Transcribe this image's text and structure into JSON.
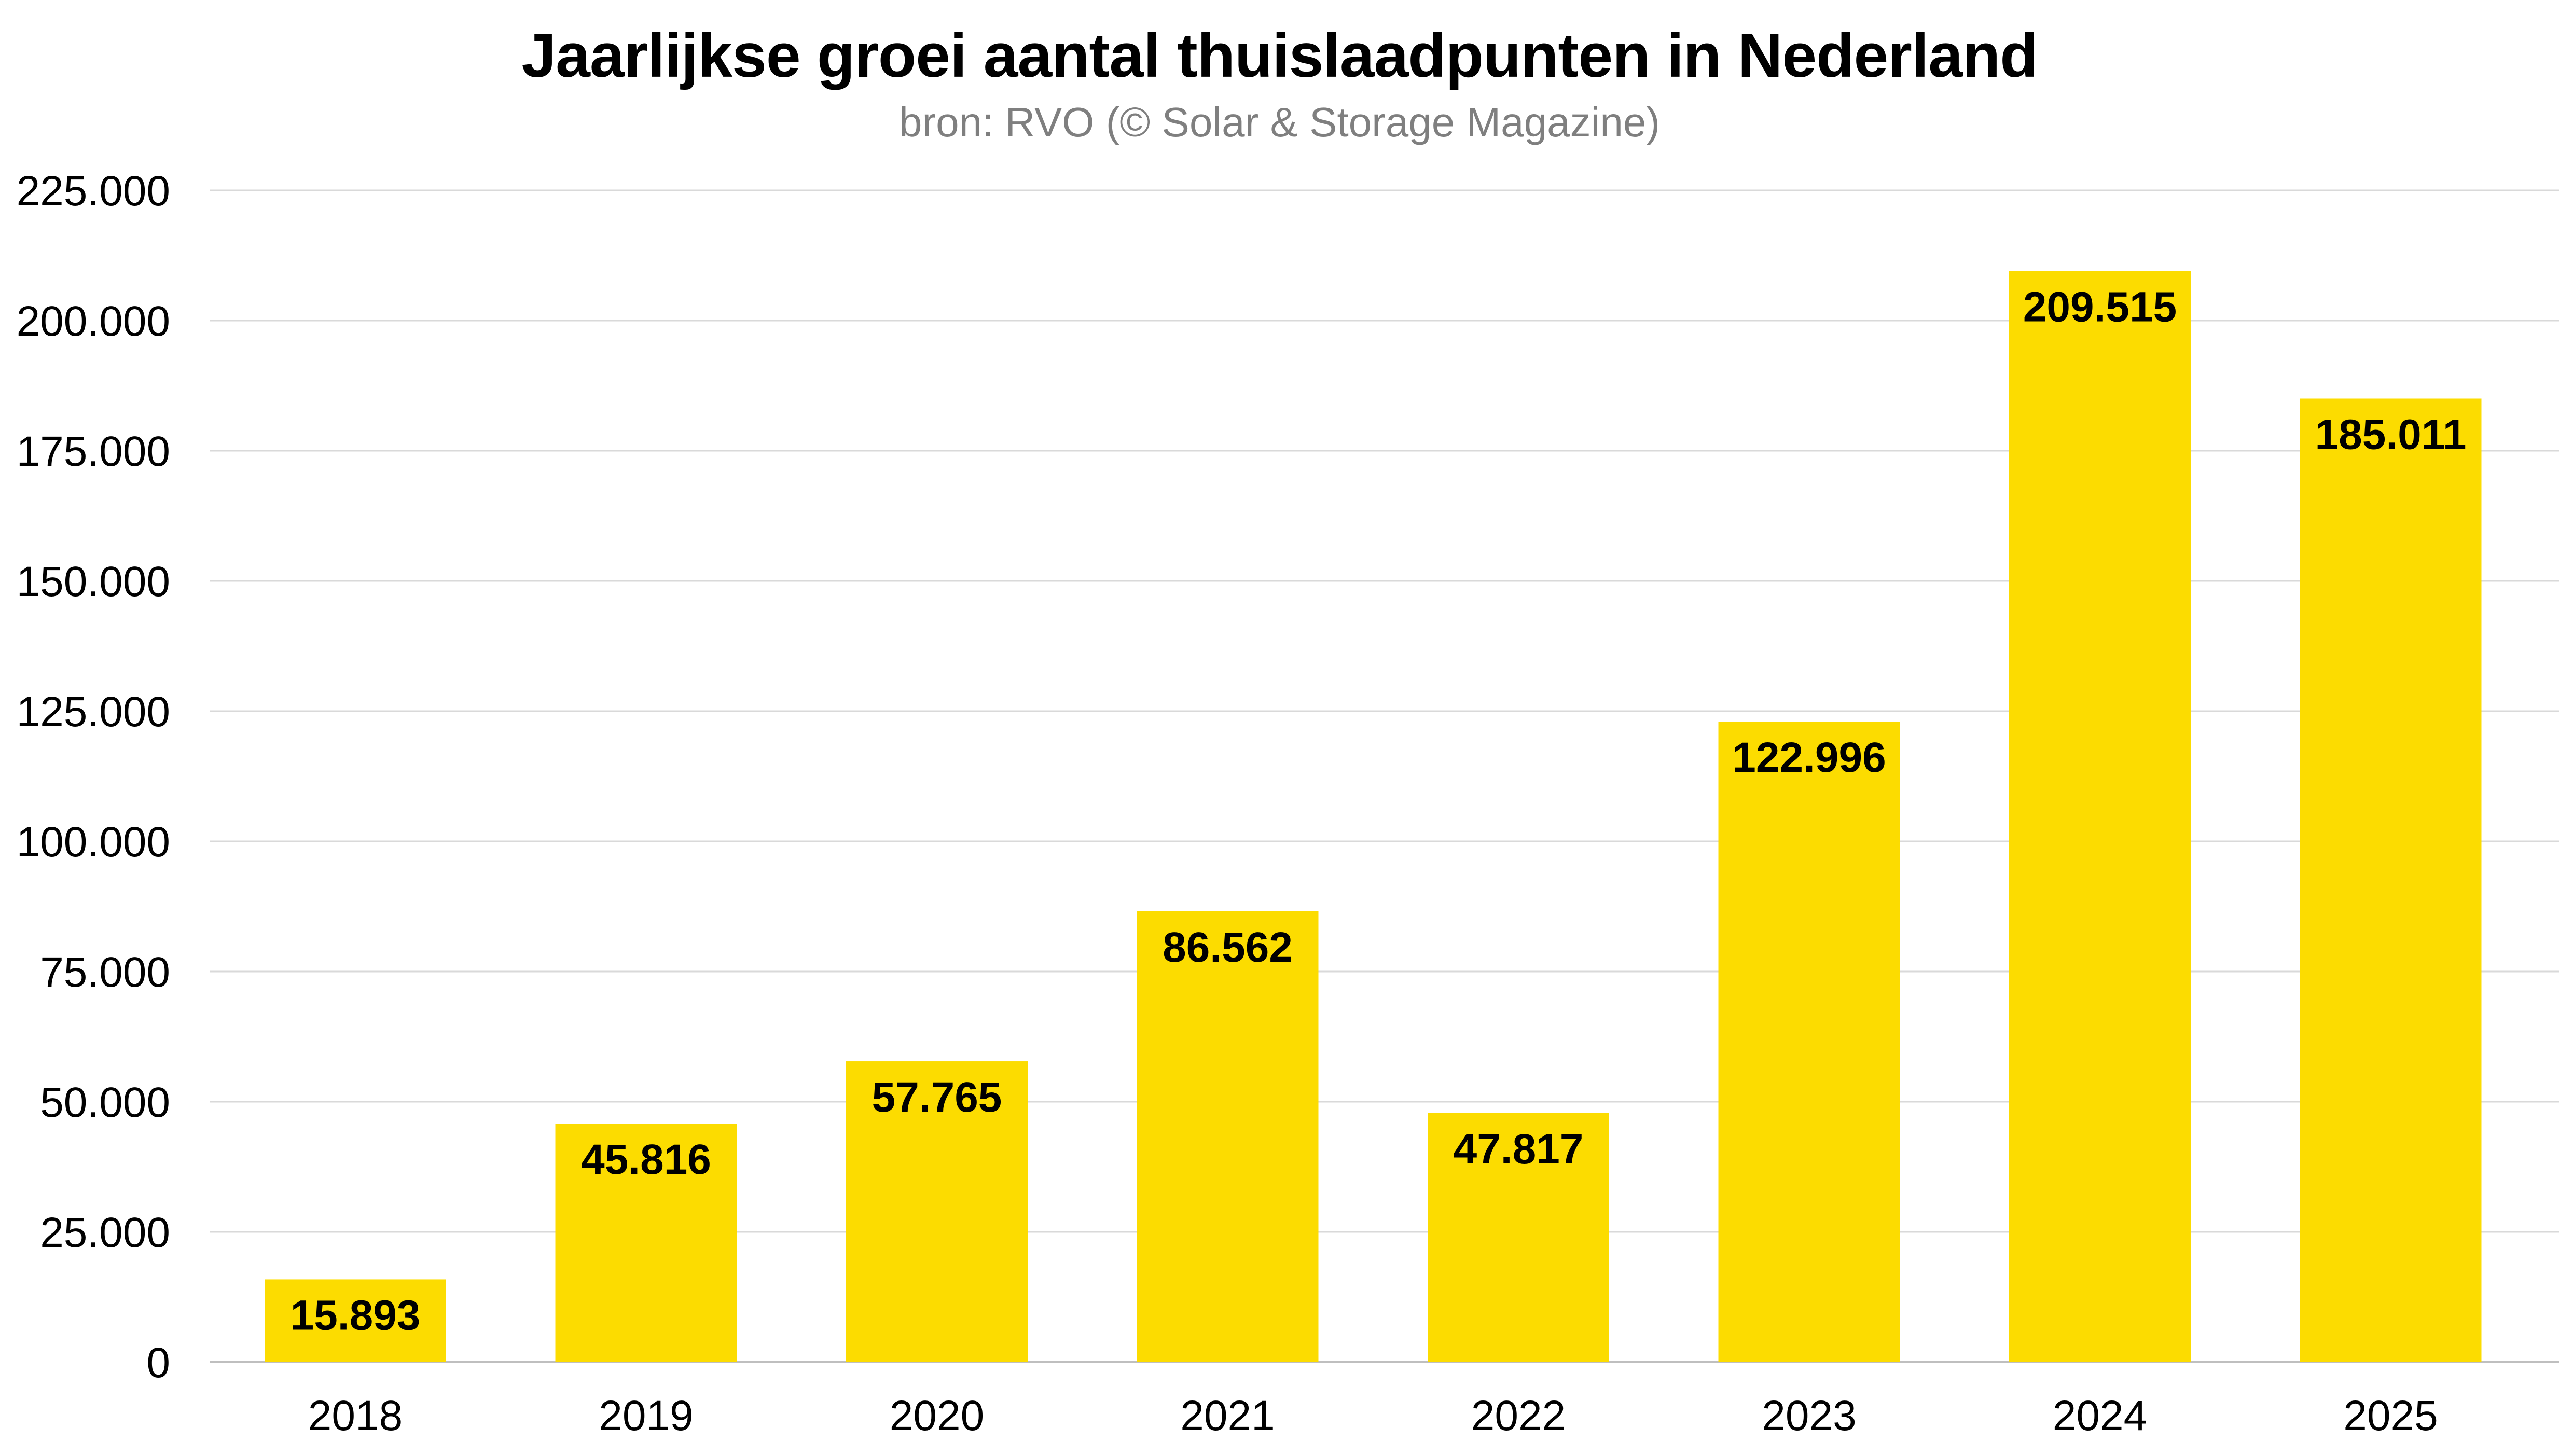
{
  "chart_data": {
    "type": "bar",
    "title": "Jaarlijkse groei aantal thuislaadpunten in Nederland",
    "subtitle": "bron: RVO (© Solar & Storage Magazine)",
    "categories": [
      "2018",
      "2019",
      "2020",
      "2021",
      "2022",
      "2023",
      "2024",
      "2025"
    ],
    "values": [
      15893,
      45816,
      57765,
      86562,
      47817,
      122996,
      209515,
      185011
    ],
    "data_labels": [
      "15.893",
      "45.816",
      "57.765",
      "86.562",
      "47.817",
      "122.996",
      "209.515",
      "185.011"
    ],
    "yticks": [
      0,
      25000,
      50000,
      75000,
      100000,
      125000,
      150000,
      175000,
      200000,
      225000
    ],
    "ytick_labels": [
      "0",
      "25.000",
      "50.000",
      "75.000",
      "100.000",
      "125.000",
      "150.000",
      "175.000",
      "200.000",
      "225.000"
    ],
    "ylim": [
      0,
      225000
    ],
    "xlabel": "",
    "ylabel": "",
    "grid": true,
    "legend": "none",
    "bar_color": "#FCDC00",
    "grid_color": "#d9d9d9"
  }
}
